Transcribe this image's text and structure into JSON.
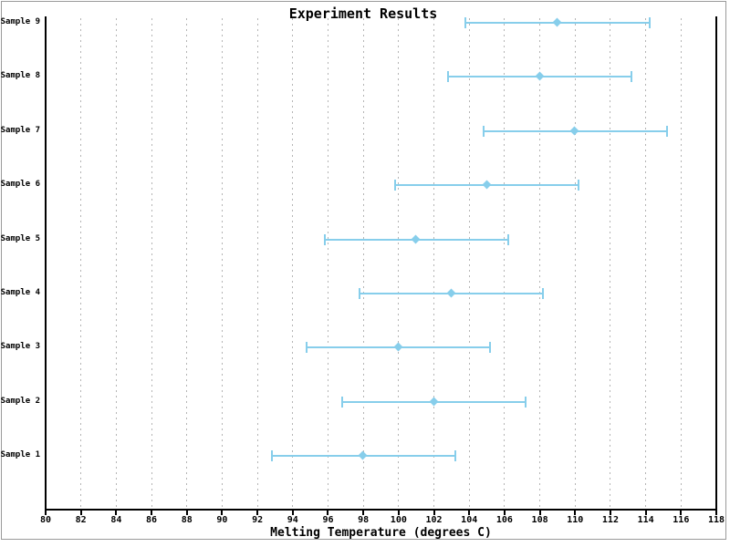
{
  "window": {
    "background": "#ffffff",
    "border_color": "#9a9a9a"
  },
  "chart_data": {
    "type": "scatter",
    "subtype": "horizontal-errorbar",
    "title": "Experiment Results",
    "xlabel": "Melting Temperature (degrees C)",
    "ylabel": "",
    "xlim": [
      80,
      118
    ],
    "xtick_step": 2,
    "xtick_labels": [
      "80",
      "82",
      "84",
      "86",
      "88",
      "90",
      "92",
      "94",
      "96",
      "98",
      "100",
      "102",
      "104",
      "106",
      "108",
      "110",
      "112",
      "114",
      "116",
      "118"
    ],
    "grid": "vertical dotted gray, at every x tick between axis ends",
    "legend_position": "none",
    "marker": "diamond",
    "series_color": "#87CEEB",
    "axis_color": "#000000",
    "grid_color": "#b4b4b4",
    "categories": [
      "Sample 1",
      "Sample 2",
      "Sample 3",
      "Sample 4",
      "Sample 5",
      "Sample 6",
      "Sample 7",
      "Sample 8",
      "Sample 9"
    ],
    "values": [
      98,
      102,
      100,
      103,
      101,
      105,
      110,
      108,
      109
    ],
    "xerr": [
      5.2,
      5.2,
      5.2,
      5.2,
      5.2,
      5.2,
      5.2,
      5.2,
      5.2
    ]
  }
}
